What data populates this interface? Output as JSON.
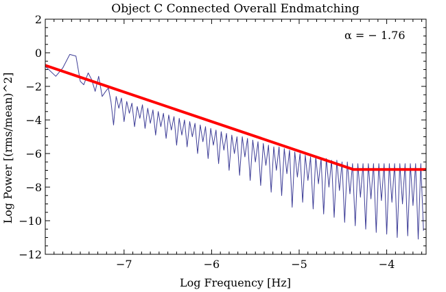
{
  "chart_data": {
    "type": "line",
    "title": "Object C Connected Overall Endmatching",
    "xlabel": "Log Frequency [Hz]",
    "ylabel": "Log Power [(rms/mean)^2]",
    "xlim": [
      -7.9,
      -3.55
    ],
    "ylim": [
      -12,
      2
    ],
    "xticks": [
      -7,
      -6,
      -5,
      -4
    ],
    "yticks": [
      -12,
      -10,
      -8,
      -6,
      -4,
      -2,
      0,
      2
    ],
    "xtick_labels": [
      "−7",
      "−6",
      "−5",
      "−4"
    ],
    "ytick_labels": [
      "−12",
      "−10",
      "−8",
      "−6",
      "−4",
      "−2",
      "0",
      "2"
    ],
    "annotation": "α =  − 1.76",
    "grid": false,
    "series": [
      {
        "kind": "periodogram",
        "color": "#3c3c96",
        "x": [
          -7.9,
          -7.78,
          -7.7,
          -7.62,
          -7.55,
          -7.5,
          -7.46,
          -7.41,
          -7.37,
          -7.33,
          -7.29,
          -7.25,
          -7.21,
          -7.18,
          -7.15,
          -7.12,
          -7.09,
          -7.06,
          -7.03,
          -7.0,
          -6.97,
          -6.94,
          -6.91,
          -6.88,
          -6.85,
          -6.82,
          -6.79,
          -6.76,
          -6.73,
          -6.7,
          -6.67,
          -6.64,
          -6.61,
          -6.58,
          -6.55,
          -6.52,
          -6.49,
          -6.46,
          -6.43,
          -6.4,
          -6.37,
          -6.34,
          -6.31,
          -6.28,
          -6.25,
          -6.22,
          -6.19,
          -6.16,
          -6.13,
          -6.1,
          -6.07,
          -6.04,
          -6.01,
          -5.98,
          -5.95,
          -5.92,
          -5.89,
          -5.86,
          -5.83,
          -5.8,
          -5.77,
          -5.74,
          -5.71,
          -5.68,
          -5.65,
          -5.62,
          -5.59,
          -5.56,
          -5.53,
          -5.5,
          -5.47,
          -5.44,
          -5.41,
          -5.38,
          -5.35,
          -5.32,
          -5.29,
          -5.26,
          -5.23,
          -5.2,
          -5.17,
          -5.14,
          -5.11,
          -5.08,
          -5.05,
          -5.02,
          -4.99,
          -4.96,
          -4.93,
          -4.9,
          -4.87,
          -4.84,
          -4.81,
          -4.78,
          -4.75,
          -4.72,
          -4.69,
          -4.66,
          -4.63,
          -4.6,
          -4.57,
          -4.54,
          -4.51,
          -4.48,
          -4.45,
          -4.42,
          -4.39,
          -4.36,
          -4.33,
          -4.3,
          -4.27,
          -4.24,
          -4.21,
          -4.18,
          -4.15,
          -4.12,
          -4.09,
          -4.06,
          -4.03,
          -4.0,
          -3.97,
          -3.94,
          -3.91,
          -3.88,
          -3.85,
          -3.82,
          -3.79,
          -3.76,
          -3.73,
          -3.7,
          -3.67,
          -3.64,
          -3.61,
          -3.58
        ],
        "y": [
          -0.8,
          -1.4,
          -0.9,
          -0.1,
          -0.2,
          -1.7,
          -1.9,
          -1.2,
          -1.6,
          -2.3,
          -1.4,
          -2.6,
          -2.3,
          -2.1,
          -2.9,
          -4.3,
          -2.6,
          -3.3,
          -2.7,
          -4.1,
          -2.9,
          -3.6,
          -3.0,
          -4.4,
          -3.2,
          -3.9,
          -3.1,
          -4.5,
          -3.3,
          -4.2,
          -3.4,
          -4.9,
          -3.5,
          -4.4,
          -3.6,
          -5.1,
          -3.7,
          -4.6,
          -3.8,
          -5.5,
          -3.9,
          -4.9,
          -4.0,
          -5.6,
          -4.1,
          -5.0,
          -4.2,
          -6.0,
          -4.3,
          -5.3,
          -4.4,
          -6.3,
          -4.5,
          -5.5,
          -4.6,
          -6.6,
          -4.7,
          -5.8,
          -4.8,
          -7.0,
          -4.9,
          -6.0,
          -5.0,
          -7.3,
          -5.0,
          -6.2,
          -5.1,
          -7.6,
          -5.2,
          -6.5,
          -5.3,
          -7.9,
          -5.4,
          -6.7,
          -5.5,
          -8.3,
          -5.6,
          -7.0,
          -5.6,
          -8.5,
          -5.7,
          -7.2,
          -5.8,
          -9.2,
          -5.9,
          -7.4,
          -6.0,
          -8.9,
          -6.1,
          -7.6,
          -6.2,
          -9.3,
          -6.2,
          -7.8,
          -6.3,
          -9.6,
          -6.3,
          -8.0,
          -6.4,
          -9.8,
          -6.4,
          -8.2,
          -6.5,
          -10.1,
          -6.5,
          -8.4,
          -6.6,
          -10.3,
          -6.6,
          -8.6,
          -6.6,
          -10.5,
          -6.6,
          -8.7,
          -6.6,
          -10.7,
          -6.6,
          -8.8,
          -6.6,
          -10.8,
          -6.6,
          -8.9,
          -6.6,
          -11.0,
          -6.6,
          -9.0,
          -6.6,
          -10.9,
          -6.6,
          -9.1,
          -6.6,
          -11.1,
          -6.6,
          -10.6
        ]
      },
      {
        "kind": "fit",
        "color": "#ff0000",
        "x": [
          -7.9,
          -4.38,
          -3.55
        ],
        "y": [
          -0.75,
          -6.95,
          -6.95
        ]
      }
    ]
  }
}
